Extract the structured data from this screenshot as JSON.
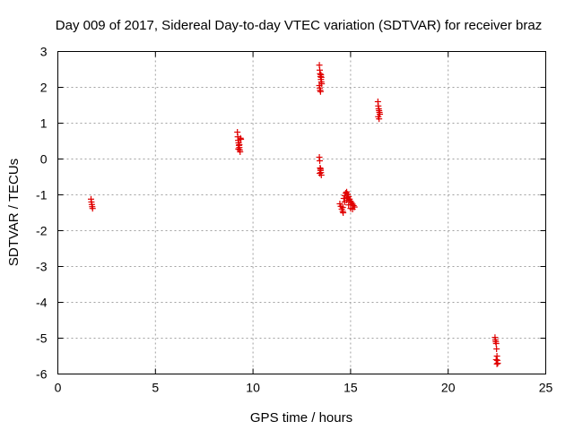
{
  "chart_data": {
    "type": "scatter",
    "title": "Day 009 of 2017, Sidereal Day-to-day VTEC variation (SDTVAR) for receiver braz",
    "xlabel": "GPS time / hours",
    "ylabel": "SDTVAR / TECUs",
    "xlim": [
      0,
      25
    ],
    "ylim": [
      -6,
      3
    ],
    "x_ticks": [
      0,
      5,
      10,
      15,
      20,
      25
    ],
    "y_ticks": [
      -6,
      -5,
      -4,
      -3,
      -2,
      -1,
      0,
      1,
      2,
      3
    ],
    "grid": true,
    "marker": "+",
    "marker_color": "#e00000",
    "series": [
      {
        "points": [
          [
            1.7,
            -1.12
          ],
          [
            1.72,
            -1.2
          ],
          [
            1.74,
            -1.27
          ],
          [
            1.76,
            -1.33
          ],
          [
            1.78,
            -1.38
          ],
          [
            9.2,
            0.75
          ],
          [
            9.22,
            0.62
          ],
          [
            9.24,
            0.52
          ],
          [
            9.26,
            0.45
          ],
          [
            9.28,
            0.38
          ],
          [
            9.3,
            0.32
          ],
          [
            9.32,
            0.25
          ],
          [
            9.34,
            0.2
          ],
          [
            9.36,
            0.58
          ],
          [
            9.38,
            0.55
          ],
          [
            9.3,
            0.4
          ],
          [
            9.25,
            0.28
          ],
          [
            13.4,
            2.62
          ],
          [
            13.42,
            2.48
          ],
          [
            13.44,
            2.38
          ],
          [
            13.46,
            2.3
          ],
          [
            13.48,
            2.22
          ],
          [
            13.5,
            2.15
          ],
          [
            13.4,
            2.05
          ],
          [
            13.42,
            1.98
          ],
          [
            13.44,
            1.92
          ],
          [
            13.46,
            1.88
          ],
          [
            13.48,
            2.35
          ],
          [
            13.5,
            2.28
          ],
          [
            13.52,
            2.1
          ],
          [
            13.4,
            0.05
          ],
          [
            13.42,
            -0.05
          ],
          [
            13.44,
            -0.25
          ],
          [
            13.46,
            -0.32
          ],
          [
            13.48,
            -0.38
          ],
          [
            13.5,
            -0.45
          ],
          [
            13.42,
            -0.4
          ],
          [
            13.46,
            -0.28
          ],
          [
            14.45,
            -1.25
          ],
          [
            14.5,
            -1.32
          ],
          [
            14.55,
            -1.4
          ],
          [
            14.6,
            -1.46
          ],
          [
            14.62,
            -1.5
          ],
          [
            14.65,
            -1.1
          ],
          [
            14.7,
            -1.02
          ],
          [
            14.75,
            -0.95
          ],
          [
            14.8,
            -0.92
          ],
          [
            14.85,
            -0.98
          ],
          [
            14.9,
            -1.05
          ],
          [
            14.95,
            -1.12
          ],
          [
            15.0,
            -1.18
          ],
          [
            15.05,
            -1.22
          ],
          [
            15.1,
            -1.26
          ],
          [
            15.15,
            -1.3
          ],
          [
            15.2,
            -1.34
          ],
          [
            14.8,
            -1.15
          ],
          [
            14.9,
            -1.28
          ],
          [
            15.0,
            -1.38
          ],
          [
            14.7,
            -1.2
          ],
          [
            15.1,
            -1.4
          ],
          [
            14.6,
            -1.35
          ],
          [
            14.85,
            -1.08
          ],
          [
            16.4,
            1.6
          ],
          [
            16.42,
            1.48
          ],
          [
            16.44,
            1.4
          ],
          [
            16.46,
            1.35
          ],
          [
            16.48,
            1.3
          ],
          [
            16.5,
            1.25
          ],
          [
            16.42,
            1.18
          ],
          [
            16.46,
            1.12
          ],
          [
            22.4,
            -4.98
          ],
          [
            22.42,
            -5.05
          ],
          [
            22.44,
            -5.1
          ],
          [
            22.46,
            -5.15
          ],
          [
            22.48,
            -5.3
          ],
          [
            22.5,
            -5.5
          ],
          [
            22.52,
            -5.62
          ],
          [
            22.54,
            -5.7
          ],
          [
            22.46,
            -5.6
          ],
          [
            22.5,
            -5.72
          ]
        ]
      }
    ]
  }
}
